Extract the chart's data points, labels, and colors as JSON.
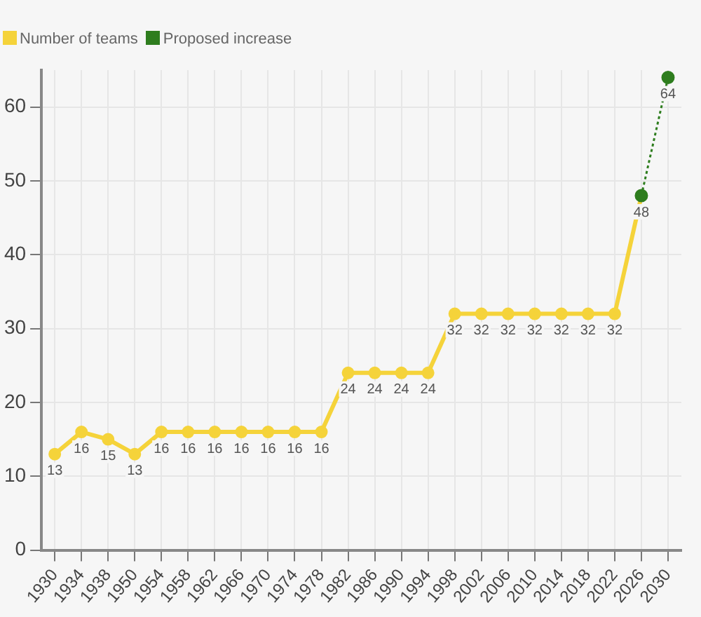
{
  "chart_data": {
    "type": "line",
    "categories": [
      "1930",
      "1934",
      "1938",
      "1950",
      "1954",
      "1958",
      "1962",
      "1966",
      "1970",
      "1974",
      "1978",
      "1982",
      "1986",
      "1990",
      "1994",
      "1998",
      "2002",
      "2006",
      "2010",
      "2014",
      "2018",
      "2022",
      "2026",
      "2030"
    ],
    "series": [
      {
        "name": "Number of teams",
        "color": "#f5d33a",
        "marker": "circle",
        "line_style": "solid",
        "values": [
          13,
          16,
          15,
          13,
          16,
          16,
          16,
          16,
          16,
          16,
          16,
          24,
          24,
          24,
          24,
          32,
          32,
          32,
          32,
          32,
          32,
          32,
          48,
          null
        ],
        "value_labels": [
          "13",
          "16",
          "15",
          "13",
          "16",
          "16",
          "16",
          "16",
          "16",
          "16",
          "16",
          "24",
          "24",
          "24",
          "24",
          "32",
          "32",
          "32",
          "32",
          "32",
          "32",
          "32",
          "48",
          null
        ]
      },
      {
        "name": "Proposed increase",
        "color": "#2e7d1e",
        "marker": "circle",
        "line_style": "dotted",
        "values": [
          null,
          null,
          null,
          null,
          null,
          null,
          null,
          null,
          null,
          null,
          null,
          null,
          null,
          null,
          null,
          null,
          null,
          null,
          null,
          null,
          null,
          null,
          48,
          64
        ],
        "value_labels": [
          null,
          null,
          null,
          null,
          null,
          null,
          null,
          null,
          null,
          null,
          null,
          null,
          null,
          null,
          null,
          null,
          null,
          null,
          null,
          null,
          null,
          null,
          null,
          "64"
        ]
      }
    ],
    "ylim": [
      0,
      65
    ],
    "yticks": [
      0,
      10,
      20,
      30,
      40,
      50,
      60
    ],
    "grid": true,
    "legend": "top left"
  }
}
